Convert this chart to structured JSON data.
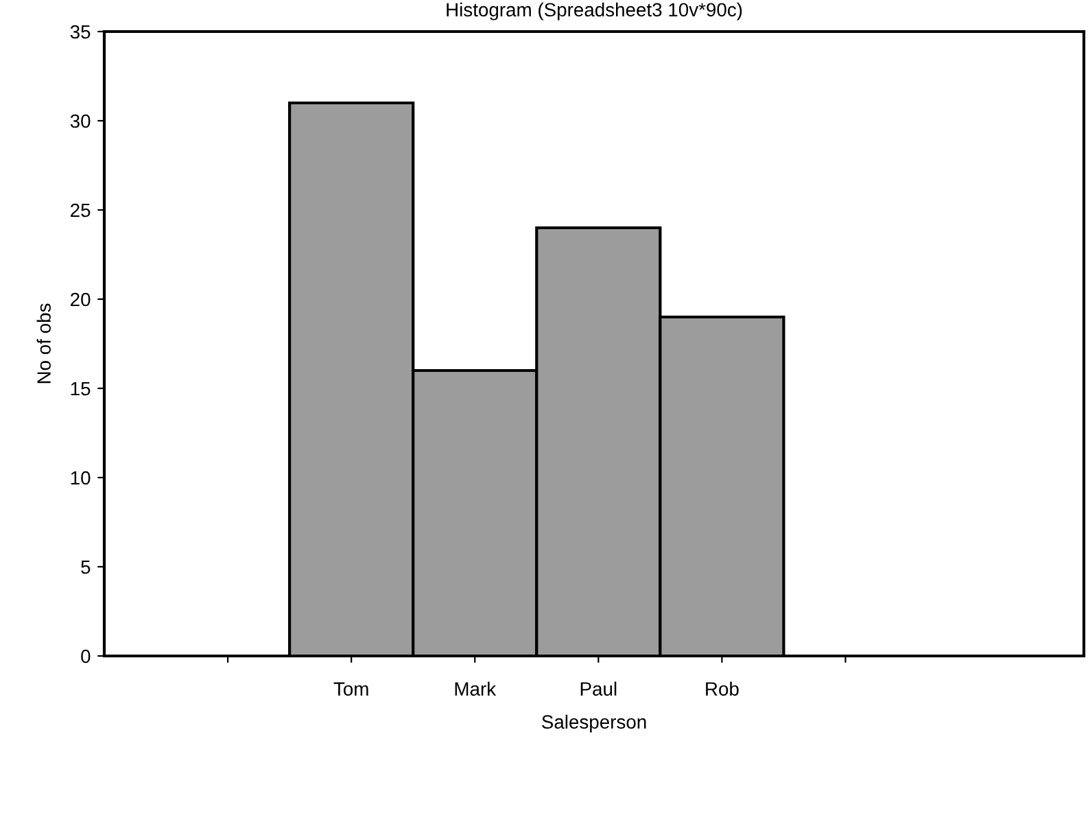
{
  "chart_data": {
    "type": "bar",
    "title": "Histogram (Spreadsheet3 10v*90c)",
    "xlabel": "Salesperson",
    "ylabel": "No of obs",
    "categories": [
      null,
      "Tom",
      "Mark",
      "Paul",
      "Rob",
      null
    ],
    "values": [
      null,
      31,
      16,
      24,
      19,
      null
    ],
    "color": "#9c9c9c",
    "ylim": [
      0,
      35
    ],
    "yticks": [
      0,
      5,
      10,
      15,
      20,
      25,
      30,
      35
    ],
    "grid": false,
    "legend": false
  }
}
